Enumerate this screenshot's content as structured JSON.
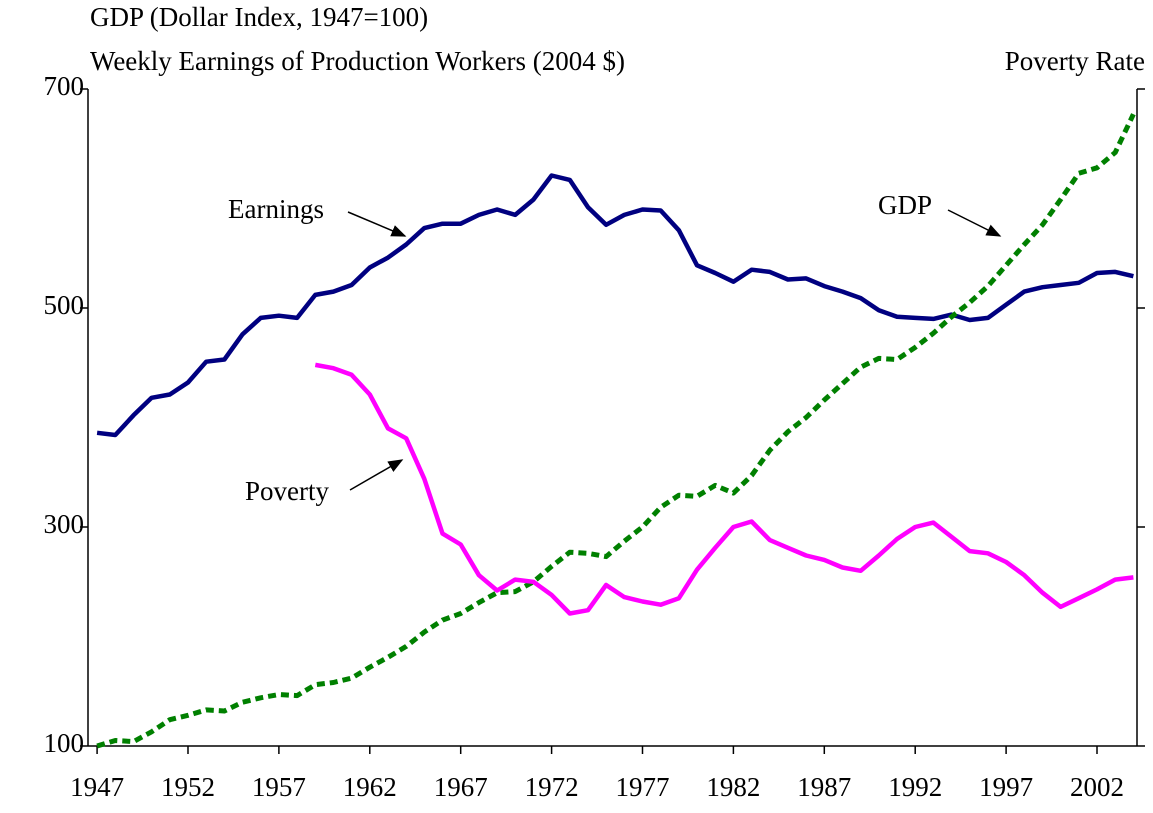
{
  "chart_data": {
    "type": "line",
    "title": "GDP (Dollar Index, 1947=100)",
    "subtitle": "Weekly Earnings of Production Workers (2004 $)",
    "y2_label": "Poverty Rate",
    "x": [
      1947,
      1948,
      1949,
      1950,
      1951,
      1952,
      1953,
      1954,
      1955,
      1956,
      1957,
      1958,
      1959,
      1960,
      1961,
      1962,
      1963,
      1964,
      1965,
      1966,
      1967,
      1968,
      1969,
      1970,
      1971,
      1972,
      1973,
      1974,
      1975,
      1976,
      1977,
      1978,
      1979,
      1980,
      1981,
      1982,
      1983,
      1984,
      1985,
      1986,
      1987,
      1988,
      1989,
      1990,
      1991,
      1992,
      1993,
      1994,
      1995,
      1996,
      1997,
      1998,
      1999,
      2000,
      2001,
      2002,
      2003,
      2004
    ],
    "series": [
      {
        "name": "Earnings",
        "color": "#000080",
        "dashed": false,
        "values": [
          386,
          384,
          402,
          418,
          421,
          432,
          451,
          453,
          476,
          491,
          493,
          491,
          512,
          515,
          521,
          537,
          546,
          558,
          573,
          577,
          577,
          585,
          590,
          585,
          599,
          621,
          617,
          592,
          576,
          585,
          590,
          589,
          571,
          539,
          532,
          524,
          535,
          533,
          526,
          527,
          520,
          515,
          509,
          498,
          492,
          491,
          490,
          494,
          489,
          491,
          503,
          515,
          519,
          521,
          523,
          532,
          533,
          529
        ]
      },
      {
        "name": "GDP",
        "color": "#008000",
        "dashed": true,
        "values": [
          100,
          105,
          104,
          113,
          124,
          128,
          133,
          132,
          140,
          144,
          147,
          146,
          156,
          158,
          162,
          172,
          181,
          191,
          204,
          215,
          221,
          231,
          240,
          241,
          250,
          264,
          277,
          276,
          273,
          287,
          300,
          318,
          329,
          328,
          338,
          331,
          347,
          370,
          387,
          400,
          416,
          431,
          446,
          454,
          453,
          464,
          477,
          492,
          505,
          520,
          539,
          558,
          576,
          599,
          623,
          628,
          642,
          677
        ]
      },
      {
        "name": "Poverty",
        "color": "#ff00ff",
        "dashed": false,
        "values": [
          null,
          null,
          null,
          null,
          null,
          null,
          null,
          null,
          null,
          null,
          null,
          null,
          448,
          445,
          439,
          421,
          390,
          381,
          344,
          294,
          284,
          256,
          242,
          252,
          250,
          238,
          221,
          224,
          247,
          236,
          232,
          229,
          235,
          261,
          281,
          300,
          305,
          288,
          281,
          274,
          270,
          263,
          260,
          274,
          289,
          300,
          304,
          291,
          278,
          276,
          268,
          256,
          240,
          227,
          235,
          243,
          252,
          254
        ]
      }
    ],
    "xlim": [
      1946.5,
      2004.2
    ],
    "xticks": [
      1947,
      1952,
      1957,
      1962,
      1967,
      1972,
      1977,
      1982,
      1987,
      1992,
      1997,
      2002
    ],
    "ylim": [
      100,
      700
    ],
    "yticks": [
      100,
      300,
      500,
      700
    ],
    "grid": false
  }
}
